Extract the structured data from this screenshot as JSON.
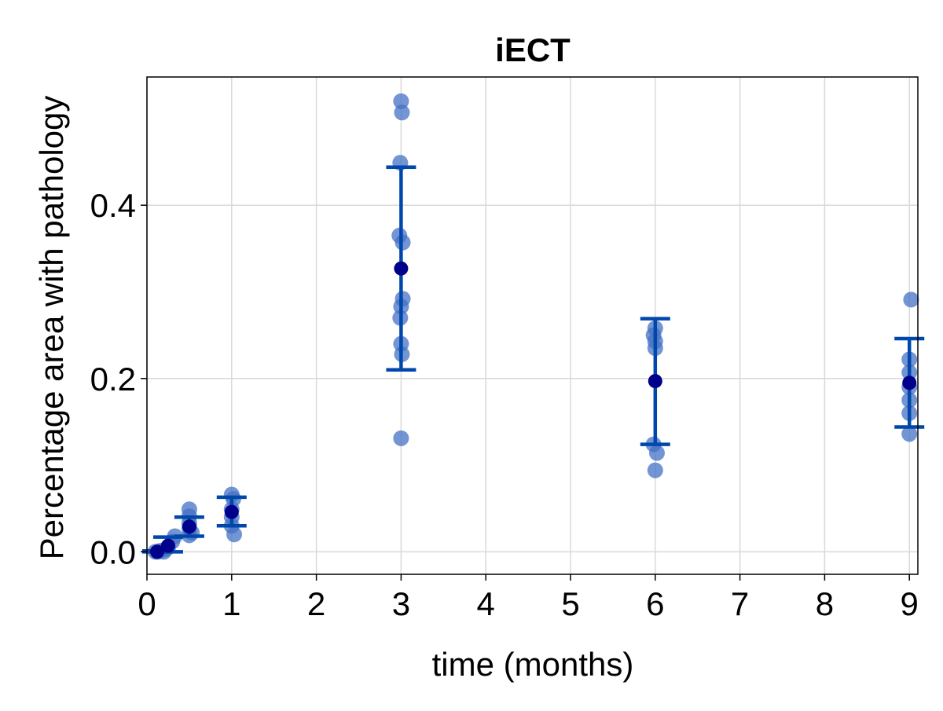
{
  "chart_data": {
    "type": "scatter",
    "title": "iECT",
    "xlabel": "time (months)",
    "ylabel": "Percentage area with pathology",
    "xlim": [
      0,
      9.1
    ],
    "ylim": [
      -0.026,
      0.548
    ],
    "xticks": [
      0,
      1,
      2,
      3,
      4,
      5,
      6,
      7,
      8,
      9
    ],
    "xtick_labels": [
      "0",
      "1",
      "2",
      "3",
      "4",
      "5",
      "6",
      "7",
      "8",
      "9"
    ],
    "yticks": [
      0.0,
      0.2,
      0.4
    ],
    "ytick_labels": [
      "0.0",
      "0.2",
      "0.4"
    ],
    "grid": true,
    "colors": {
      "points": "#4472c4",
      "mean": "#00008b",
      "errorbar": "#0047ab",
      "grid": "#d9d9d9",
      "axis": "#000000"
    },
    "series": [
      {
        "values": [
          {
            "x": 0.1,
            "y": 0.0
          },
          {
            "x": 0.13,
            "y": 0.0
          },
          {
            "x": 0.15,
            "y": 0.001
          },
          {
            "x": 0.2,
            "y": 0.0
          },
          {
            "x": 0.22,
            "y": 0.003
          },
          {
            "x": 0.25,
            "y": 0.005
          },
          {
            "x": 0.3,
            "y": 0.012
          },
          {
            "x": 0.33,
            "y": 0.018
          },
          {
            "x": 0.5,
            "y": 0.049
          },
          {
            "x": 0.5,
            "y": 0.041
          },
          {
            "x": 0.5,
            "y": 0.033
          },
          {
            "x": 0.5,
            "y": 0.027
          },
          {
            "x": 0.53,
            "y": 0.022
          },
          {
            "x": 0.5,
            "y": 0.019
          },
          {
            "x": 1.0,
            "y": 0.066
          },
          {
            "x": 1.02,
            "y": 0.061
          },
          {
            "x": 1.0,
            "y": 0.049
          },
          {
            "x": 1.0,
            "y": 0.04
          },
          {
            "x": 1.0,
            "y": 0.03
          },
          {
            "x": 1.03,
            "y": 0.02
          },
          {
            "x": 3.0,
            "y": 0.52
          },
          {
            "x": 3.01,
            "y": 0.507
          },
          {
            "x": 2.99,
            "y": 0.449
          },
          {
            "x": 2.98,
            "y": 0.365
          },
          {
            "x": 3.02,
            "y": 0.357
          },
          {
            "x": 3.02,
            "y": 0.292
          },
          {
            "x": 3.0,
            "y": 0.283
          },
          {
            "x": 2.99,
            "y": 0.27
          },
          {
            "x": 3.0,
            "y": 0.24
          },
          {
            "x": 3.01,
            "y": 0.228
          },
          {
            "x": 3.0,
            "y": 0.131
          },
          {
            "x": 6.0,
            "y": 0.258
          },
          {
            "x": 5.98,
            "y": 0.25
          },
          {
            "x": 6.0,
            "y": 0.243
          },
          {
            "x": 6.0,
            "y": 0.235
          },
          {
            "x": 5.98,
            "y": 0.124
          },
          {
            "x": 6.02,
            "y": 0.114
          },
          {
            "x": 6.0,
            "y": 0.094
          },
          {
            "x": 9.02,
            "y": 0.291
          },
          {
            "x": 9.0,
            "y": 0.222
          },
          {
            "x": 9.0,
            "y": 0.207
          },
          {
            "x": 9.0,
            "y": 0.19
          },
          {
            "x": 9.0,
            "y": 0.175
          },
          {
            "x": 9.0,
            "y": 0.16
          },
          {
            "x": 9.0,
            "y": 0.136
          }
        ]
      },
      {
        "values": [
          {
            "x": 0.12,
            "y": 0.0,
            "low": 0.0,
            "high": 0.001
          },
          {
            "x": 0.25,
            "y": 0.007,
            "low": 0.0,
            "high": 0.017
          },
          {
            "x": 0.5,
            "y": 0.029,
            "low": 0.018,
            "high": 0.04
          },
          {
            "x": 1.0,
            "y": 0.046,
            "low": 0.03,
            "high": 0.063
          },
          {
            "x": 3.0,
            "y": 0.327,
            "low": 0.21,
            "high": 0.444
          },
          {
            "x": 6.0,
            "y": 0.197,
            "low": 0.124,
            "high": 0.269
          },
          {
            "x": 9.0,
            "y": 0.195,
            "low": 0.144,
            "high": 0.246
          }
        ]
      }
    ]
  }
}
